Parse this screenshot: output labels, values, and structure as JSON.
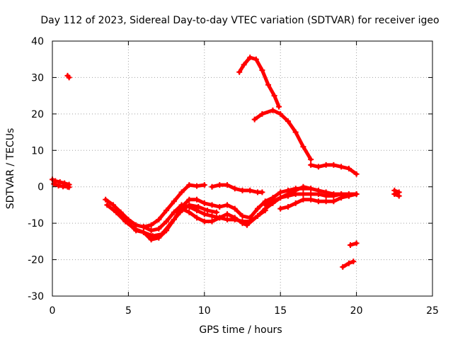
{
  "chart_data": {
    "type": "scatter",
    "title": "Day 112 of 2023, Sidereal Day-to-day VTEC variation (SDTVAR) for receiver igeo",
    "xlabel": "GPS time / hours",
    "ylabel": "SDTVAR / TECUs",
    "xlim": [
      0,
      25
    ],
    "ylim": [
      -30,
      40
    ],
    "xticks": [
      0,
      5,
      10,
      15,
      20,
      25
    ],
    "yticks": [
      -30,
      -20,
      -10,
      0,
      10,
      20,
      30,
      40
    ],
    "grid": true,
    "legend": "none",
    "series_color": "#ff0000",
    "series": [
      {
        "name": "track-1",
        "points": [
          [
            0.0,
            2.0
          ],
          [
            0.2,
            1.6
          ],
          [
            0.5,
            1.3
          ],
          [
            0.8,
            1.0
          ],
          [
            1.1,
            0.6
          ]
        ]
      },
      {
        "name": "track-2",
        "points": [
          [
            0.1,
            0.8
          ],
          [
            0.4,
            0.3
          ],
          [
            0.7,
            0.1
          ],
          [
            1.0,
            0.0
          ],
          [
            1.1,
            -0.1
          ]
        ]
      },
      {
        "name": "track-3",
        "points": [
          [
            1.0,
            30.5
          ],
          [
            1.1,
            30.0
          ]
        ]
      },
      {
        "name": "track-4",
        "points": [
          [
            3.5,
            -3.5
          ],
          [
            4.0,
            -5.0
          ],
          [
            4.5,
            -7.0
          ],
          [
            5.0,
            -9.0
          ],
          [
            5.5,
            -10.5
          ],
          [
            6.0,
            -11.0
          ],
          [
            6.5,
            -10.5
          ],
          [
            7.0,
            -9.0
          ],
          [
            7.5,
            -6.5
          ],
          [
            8.0,
            -4.0
          ],
          [
            8.5,
            -1.5
          ],
          [
            9.0,
            0.5
          ],
          [
            9.5,
            0.2
          ],
          [
            10.0,
            0.5
          ]
        ]
      },
      {
        "name": "track-5",
        "points": [
          [
            3.6,
            -5.0
          ],
          [
            4.2,
            -7.0
          ],
          [
            4.8,
            -9.5
          ],
          [
            5.4,
            -11.5
          ],
          [
            6.0,
            -12.5
          ],
          [
            6.6,
            -13.5
          ],
          [
            7.2,
            -13.0
          ],
          [
            7.8,
            -10.0
          ],
          [
            8.4,
            -7.0
          ],
          [
            9.0,
            -5.0
          ],
          [
            9.6,
            -5.5
          ],
          [
            10.2,
            -6.5
          ],
          [
            10.8,
            -7.0
          ]
        ]
      },
      {
        "name": "track-6",
        "points": [
          [
            4.5,
            -8.0
          ],
          [
            5.0,
            -10.0
          ],
          [
            5.5,
            -12.0
          ],
          [
            6.0,
            -12.5
          ],
          [
            6.5,
            -14.5
          ],
          [
            7.0,
            -14.0
          ],
          [
            7.5,
            -12.0
          ],
          [
            8.0,
            -9.0
          ],
          [
            8.5,
            -5.5
          ],
          [
            9.0,
            -3.5
          ],
          [
            9.5,
            -3.5
          ],
          [
            10.0,
            -4.5
          ],
          [
            10.5,
            -5.0
          ],
          [
            11.0,
            -5.5
          ],
          [
            11.5,
            -5.0
          ],
          [
            12.0,
            -6.0
          ],
          [
            12.5,
            -8.0
          ],
          [
            13.0,
            -8.5
          ],
          [
            13.5,
            -6.0
          ],
          [
            14.0,
            -4.0
          ],
          [
            14.5,
            -3.0
          ],
          [
            15.0,
            -1.5
          ],
          [
            15.5,
            -1.0
          ],
          [
            16.0,
            -0.5
          ],
          [
            16.5,
            -0.5
          ],
          [
            17.0,
            -0.5
          ]
        ]
      },
      {
        "name": "track-7",
        "points": [
          [
            6.0,
            -11.0
          ],
          [
            6.5,
            -12.0
          ],
          [
            7.0,
            -11.5
          ],
          [
            7.5,
            -9.5
          ],
          [
            8.0,
            -7.0
          ],
          [
            8.5,
            -5.0
          ],
          [
            9.0,
            -5.5
          ],
          [
            9.5,
            -6.5
          ],
          [
            10.0,
            -7.5
          ],
          [
            10.5,
            -8.0
          ],
          [
            11.0,
            -8.5
          ],
          [
            11.5,
            -9.0
          ],
          [
            12.0,
            -9.0
          ],
          [
            12.5,
            -9.5
          ],
          [
            13.0,
            -9.5
          ],
          [
            13.5,
            -8.0
          ],
          [
            14.0,
            -6.0
          ],
          [
            14.5,
            -4.5
          ],
          [
            15.0,
            -3.0
          ],
          [
            15.5,
            -2.5
          ],
          [
            16.0,
            -2.0
          ],
          [
            16.5,
            -2.0
          ],
          [
            17.0,
            -2.0
          ],
          [
            17.5,
            -2.0
          ],
          [
            18.0,
            -2.5
          ],
          [
            18.5,
            -2.5
          ],
          [
            19.0,
            -2.0
          ],
          [
            19.5,
            -2.5
          ],
          [
            20.0,
            -2.0
          ]
        ]
      },
      {
        "name": "track-8",
        "points": [
          [
            8.5,
            -6.0
          ],
          [
            9.0,
            -7.0
          ],
          [
            9.5,
            -8.5
          ],
          [
            10.0,
            -9.5
          ],
          [
            10.5,
            -9.5
          ],
          [
            11.0,
            -8.5
          ],
          [
            11.5,
            -7.5
          ],
          [
            12.0,
            -8.5
          ],
          [
            12.5,
            -10.0
          ],
          [
            12.8,
            -10.5
          ],
          [
            13.5,
            -8.0
          ],
          [
            14.0,
            -6.5
          ]
        ]
      },
      {
        "name": "track-9",
        "points": [
          [
            10.5,
            0.0
          ],
          [
            11.0,
            0.5
          ],
          [
            11.5,
            0.5
          ],
          [
            12.0,
            -0.5
          ],
          [
            12.5,
            -1.0
          ],
          [
            13.0,
            -1.0
          ],
          [
            13.5,
            -1.5
          ],
          [
            13.8,
            -1.5
          ]
        ]
      },
      {
        "name": "track-10",
        "points": [
          [
            12.3,
            31.5
          ],
          [
            12.6,
            33.5
          ],
          [
            13.0,
            35.5
          ],
          [
            13.4,
            35.0
          ],
          [
            13.8,
            32.0
          ],
          [
            14.2,
            28.0
          ],
          [
            14.6,
            25.0
          ],
          [
            14.9,
            22.0
          ]
        ]
      },
      {
        "name": "track-11",
        "points": [
          [
            13.3,
            18.5
          ],
          [
            13.8,
            20.0
          ],
          [
            14.5,
            21.0
          ],
          [
            15.0,
            20.0
          ],
          [
            15.5,
            18.0
          ],
          [
            16.0,
            15.0
          ],
          [
            16.5,
            11.0
          ],
          [
            17.0,
            7.5
          ]
        ]
      },
      {
        "name": "track-12",
        "points": [
          [
            17.0,
            6.0
          ],
          [
            17.5,
            5.5
          ],
          [
            18.0,
            6.0
          ],
          [
            18.5,
            6.0
          ],
          [
            19.0,
            5.5
          ],
          [
            19.5,
            5.0
          ],
          [
            20.0,
            3.5
          ]
        ]
      },
      {
        "name": "track-13",
        "points": [
          [
            14.0,
            -5.0
          ],
          [
            14.5,
            -4.0
          ],
          [
            15.0,
            -3.0
          ],
          [
            15.5,
            -2.0
          ],
          [
            16.0,
            -1.0
          ],
          [
            16.5,
            0.0
          ],
          [
            17.0,
            -0.5
          ],
          [
            17.5,
            -1.0
          ],
          [
            18.0,
            -1.5
          ],
          [
            18.5,
            -2.0
          ],
          [
            19.0,
            -2.0
          ],
          [
            19.5,
            -2.0
          ],
          [
            20.0,
            -2.0
          ]
        ]
      },
      {
        "name": "track-14",
        "points": [
          [
            15.0,
            -6.0
          ],
          [
            15.5,
            -5.5
          ],
          [
            16.0,
            -4.5
          ],
          [
            16.5,
            -3.5
          ],
          [
            17.0,
            -3.5
          ],
          [
            17.5,
            -4.0
          ],
          [
            18.0,
            -4.0
          ],
          [
            18.5,
            -4.0
          ],
          [
            19.0,
            -3.0
          ],
          [
            19.5,
            -2.5
          ]
        ]
      },
      {
        "name": "track-15",
        "points": [
          [
            22.5,
            -1.0
          ],
          [
            22.8,
            -1.5
          ],
          [
            22.5,
            -2.0
          ],
          [
            22.8,
            -2.5
          ]
        ]
      },
      {
        "name": "track-16",
        "points": [
          [
            19.6,
            -16.0
          ],
          [
            20.0,
            -15.5
          ]
        ]
      },
      {
        "name": "track-17",
        "points": [
          [
            19.1,
            -22.0
          ],
          [
            19.5,
            -21.0
          ],
          [
            19.8,
            -20.5
          ]
        ]
      }
    ]
  }
}
